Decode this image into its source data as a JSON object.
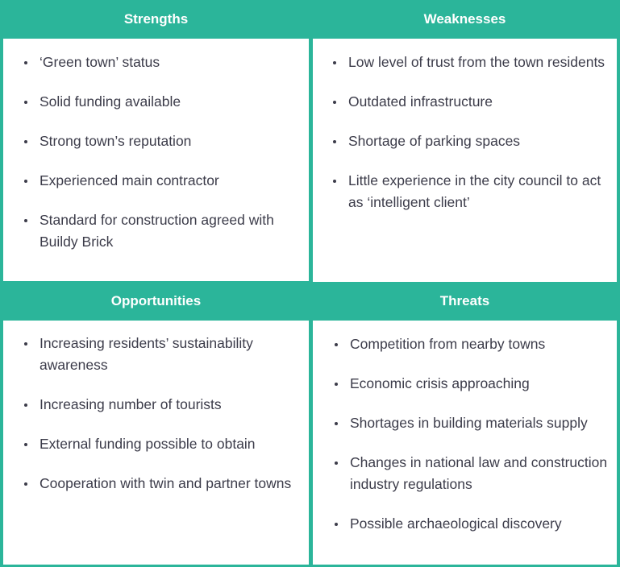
{
  "colors": {
    "accent": "#2bb59a",
    "text": "#3c3c4a",
    "panel": "#ffffff"
  },
  "strengths": {
    "title": "Strengths",
    "items": [
      "‘Green town’ status",
      "Solid funding available",
      "Strong town’s reputation",
      "Experienced main contractor",
      "Standard for construction agreed with Buildy Brick"
    ]
  },
  "weaknesses": {
    "title": "Weaknesses",
    "items": [
      "Low level of trust from the town residents",
      "Outdated infrastructure",
      "Shortage of parking spaces",
      "Little experience in the city council to act as ‘intelligent client’"
    ]
  },
  "opportunities": {
    "title": "Opportunities",
    "items": [
      "Increasing residents’ sustainability awareness",
      "Increasing number of tourists",
      "External funding possible to obtain",
      "Cooperation with twin and partner towns"
    ]
  },
  "threats": {
    "title": "Threats",
    "items": [
      "Competition from nearby towns",
      "Economic crisis approaching",
      "Shortages in building materials supply",
      "Changes in national law and construction industry regulations",
      "Possible archaeological discovery"
    ]
  }
}
